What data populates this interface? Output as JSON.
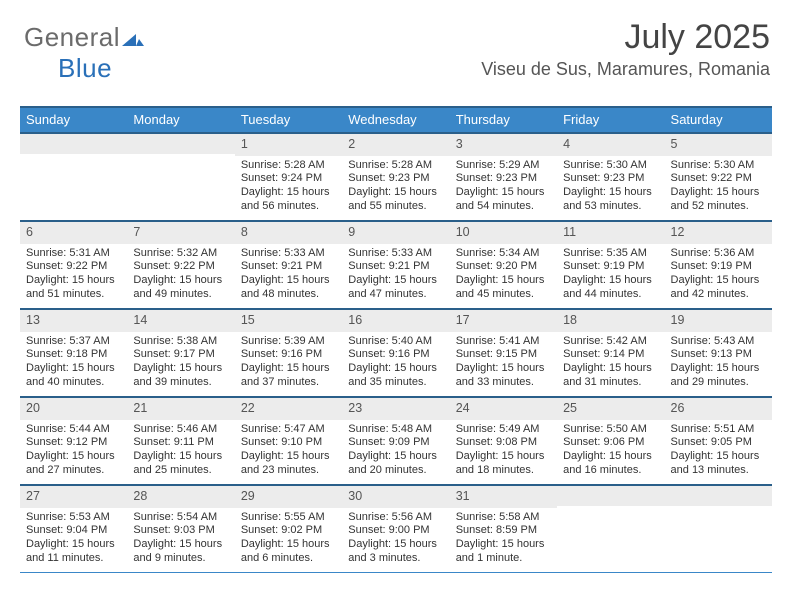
{
  "brand": {
    "part1": "General",
    "part2": "Blue"
  },
  "title": "July 2025",
  "subtitle": "Viseu de Sus, Maramures, Romania",
  "colors": {
    "header_bg": "#3a87c8",
    "header_border": "#2a5f8a",
    "daynum_bg": "#ececec",
    "text": "#333333",
    "brand_gray": "#6b6b6b",
    "brand_blue": "#2a70b8"
  },
  "day_headers": [
    "Sunday",
    "Monday",
    "Tuesday",
    "Wednesday",
    "Thursday",
    "Friday",
    "Saturday"
  ],
  "weeks": [
    [
      {
        "n": "",
        "sr": "",
        "ss": "",
        "dl": ""
      },
      {
        "n": "",
        "sr": "",
        "ss": "",
        "dl": ""
      },
      {
        "n": "1",
        "sr": "Sunrise: 5:28 AM",
        "ss": "Sunset: 9:24 PM",
        "dl": "Daylight: 15 hours and 56 minutes."
      },
      {
        "n": "2",
        "sr": "Sunrise: 5:28 AM",
        "ss": "Sunset: 9:23 PM",
        "dl": "Daylight: 15 hours and 55 minutes."
      },
      {
        "n": "3",
        "sr": "Sunrise: 5:29 AM",
        "ss": "Sunset: 9:23 PM",
        "dl": "Daylight: 15 hours and 54 minutes."
      },
      {
        "n": "4",
        "sr": "Sunrise: 5:30 AM",
        "ss": "Sunset: 9:23 PM",
        "dl": "Daylight: 15 hours and 53 minutes."
      },
      {
        "n": "5",
        "sr": "Sunrise: 5:30 AM",
        "ss": "Sunset: 9:22 PM",
        "dl": "Daylight: 15 hours and 52 minutes."
      }
    ],
    [
      {
        "n": "6",
        "sr": "Sunrise: 5:31 AM",
        "ss": "Sunset: 9:22 PM",
        "dl": "Daylight: 15 hours and 51 minutes."
      },
      {
        "n": "7",
        "sr": "Sunrise: 5:32 AM",
        "ss": "Sunset: 9:22 PM",
        "dl": "Daylight: 15 hours and 49 minutes."
      },
      {
        "n": "8",
        "sr": "Sunrise: 5:33 AM",
        "ss": "Sunset: 9:21 PM",
        "dl": "Daylight: 15 hours and 48 minutes."
      },
      {
        "n": "9",
        "sr": "Sunrise: 5:33 AM",
        "ss": "Sunset: 9:21 PM",
        "dl": "Daylight: 15 hours and 47 minutes."
      },
      {
        "n": "10",
        "sr": "Sunrise: 5:34 AM",
        "ss": "Sunset: 9:20 PM",
        "dl": "Daylight: 15 hours and 45 minutes."
      },
      {
        "n": "11",
        "sr": "Sunrise: 5:35 AM",
        "ss": "Sunset: 9:19 PM",
        "dl": "Daylight: 15 hours and 44 minutes."
      },
      {
        "n": "12",
        "sr": "Sunrise: 5:36 AM",
        "ss": "Sunset: 9:19 PM",
        "dl": "Daylight: 15 hours and 42 minutes."
      }
    ],
    [
      {
        "n": "13",
        "sr": "Sunrise: 5:37 AM",
        "ss": "Sunset: 9:18 PM",
        "dl": "Daylight: 15 hours and 40 minutes."
      },
      {
        "n": "14",
        "sr": "Sunrise: 5:38 AM",
        "ss": "Sunset: 9:17 PM",
        "dl": "Daylight: 15 hours and 39 minutes."
      },
      {
        "n": "15",
        "sr": "Sunrise: 5:39 AM",
        "ss": "Sunset: 9:16 PM",
        "dl": "Daylight: 15 hours and 37 minutes."
      },
      {
        "n": "16",
        "sr": "Sunrise: 5:40 AM",
        "ss": "Sunset: 9:16 PM",
        "dl": "Daylight: 15 hours and 35 minutes."
      },
      {
        "n": "17",
        "sr": "Sunrise: 5:41 AM",
        "ss": "Sunset: 9:15 PM",
        "dl": "Daylight: 15 hours and 33 minutes."
      },
      {
        "n": "18",
        "sr": "Sunrise: 5:42 AM",
        "ss": "Sunset: 9:14 PM",
        "dl": "Daylight: 15 hours and 31 minutes."
      },
      {
        "n": "19",
        "sr": "Sunrise: 5:43 AM",
        "ss": "Sunset: 9:13 PM",
        "dl": "Daylight: 15 hours and 29 minutes."
      }
    ],
    [
      {
        "n": "20",
        "sr": "Sunrise: 5:44 AM",
        "ss": "Sunset: 9:12 PM",
        "dl": "Daylight: 15 hours and 27 minutes."
      },
      {
        "n": "21",
        "sr": "Sunrise: 5:46 AM",
        "ss": "Sunset: 9:11 PM",
        "dl": "Daylight: 15 hours and 25 minutes."
      },
      {
        "n": "22",
        "sr": "Sunrise: 5:47 AM",
        "ss": "Sunset: 9:10 PM",
        "dl": "Daylight: 15 hours and 23 minutes."
      },
      {
        "n": "23",
        "sr": "Sunrise: 5:48 AM",
        "ss": "Sunset: 9:09 PM",
        "dl": "Daylight: 15 hours and 20 minutes."
      },
      {
        "n": "24",
        "sr": "Sunrise: 5:49 AM",
        "ss": "Sunset: 9:08 PM",
        "dl": "Daylight: 15 hours and 18 minutes."
      },
      {
        "n": "25",
        "sr": "Sunrise: 5:50 AM",
        "ss": "Sunset: 9:06 PM",
        "dl": "Daylight: 15 hours and 16 minutes."
      },
      {
        "n": "26",
        "sr": "Sunrise: 5:51 AM",
        "ss": "Sunset: 9:05 PM",
        "dl": "Daylight: 15 hours and 13 minutes."
      }
    ],
    [
      {
        "n": "27",
        "sr": "Sunrise: 5:53 AM",
        "ss": "Sunset: 9:04 PM",
        "dl": "Daylight: 15 hours and 11 minutes."
      },
      {
        "n": "28",
        "sr": "Sunrise: 5:54 AM",
        "ss": "Sunset: 9:03 PM",
        "dl": "Daylight: 15 hours and 9 minutes."
      },
      {
        "n": "29",
        "sr": "Sunrise: 5:55 AM",
        "ss": "Sunset: 9:02 PM",
        "dl": "Daylight: 15 hours and 6 minutes."
      },
      {
        "n": "30",
        "sr": "Sunrise: 5:56 AM",
        "ss": "Sunset: 9:00 PM",
        "dl": "Daylight: 15 hours and 3 minutes."
      },
      {
        "n": "31",
        "sr": "Sunrise: 5:58 AM",
        "ss": "Sunset: 8:59 PM",
        "dl": "Daylight: 15 hours and 1 minute."
      },
      {
        "n": "",
        "sr": "",
        "ss": "",
        "dl": ""
      },
      {
        "n": "",
        "sr": "",
        "ss": "",
        "dl": ""
      }
    ]
  ]
}
